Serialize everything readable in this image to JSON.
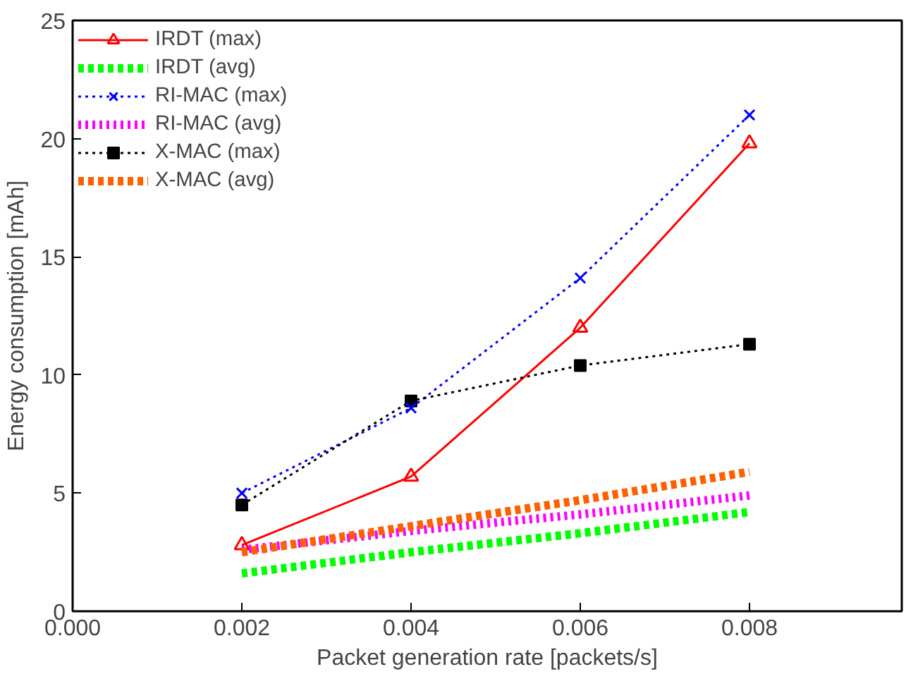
{
  "chart_data": {
    "type": "line",
    "xlabel": "Packet generation rate [packets/s]",
    "ylabel": "Energy consumption [mAh]",
    "x": [
      0.002,
      0.004,
      0.006,
      0.008
    ],
    "xlim": [
      0,
      0.0098
    ],
    "xticks": [
      {
        "value": 0,
        "label": "0.000"
      },
      {
        "value": 0.002,
        "label": "0.002"
      },
      {
        "value": 0.004,
        "label": "0.004"
      },
      {
        "value": 0.006,
        "label": "0.006"
      },
      {
        "value": 0.008,
        "label": "0.008"
      }
    ],
    "ylim": [
      0,
      25
    ],
    "yticks": [
      0,
      5,
      10,
      15,
      20,
      25
    ],
    "grid": false,
    "legend": "top left",
    "series": [
      {
        "name": "IRDT (max)",
        "color": "#ff0000",
        "values": [
          2.8,
          5.7,
          12.0,
          19.8
        ],
        "marker": "triangle",
        "line_style": "solid"
      },
      {
        "name": "IRDT (avg)",
        "color": "#00ff00",
        "values": [
          1.6,
          2.5,
          3.3,
          4.2
        ],
        "marker": "none",
        "line_style": "dashed"
      },
      {
        "name": "RI-MAC (max)",
        "color": "#0000ff",
        "values": [
          5.0,
          8.6,
          14.1,
          21.0
        ],
        "marker": "cross",
        "line_style": "dotted"
      },
      {
        "name": "RI-MAC (avg)",
        "color": "#ff00ff",
        "values": [
          2.6,
          3.4,
          4.1,
          4.9
        ],
        "marker": "none",
        "line_style": "dotted"
      },
      {
        "name": "X-MAC (max)",
        "color": "#000000",
        "values": [
          4.5,
          8.9,
          10.4,
          11.3
        ],
        "marker": "square",
        "line_style": "dotted"
      },
      {
        "name": "X-MAC (avg)",
        "color": "#ff6000",
        "values": [
          2.5,
          3.6,
          4.7,
          5.9
        ],
        "marker": "none",
        "line_style": "dashed"
      }
    ]
  }
}
